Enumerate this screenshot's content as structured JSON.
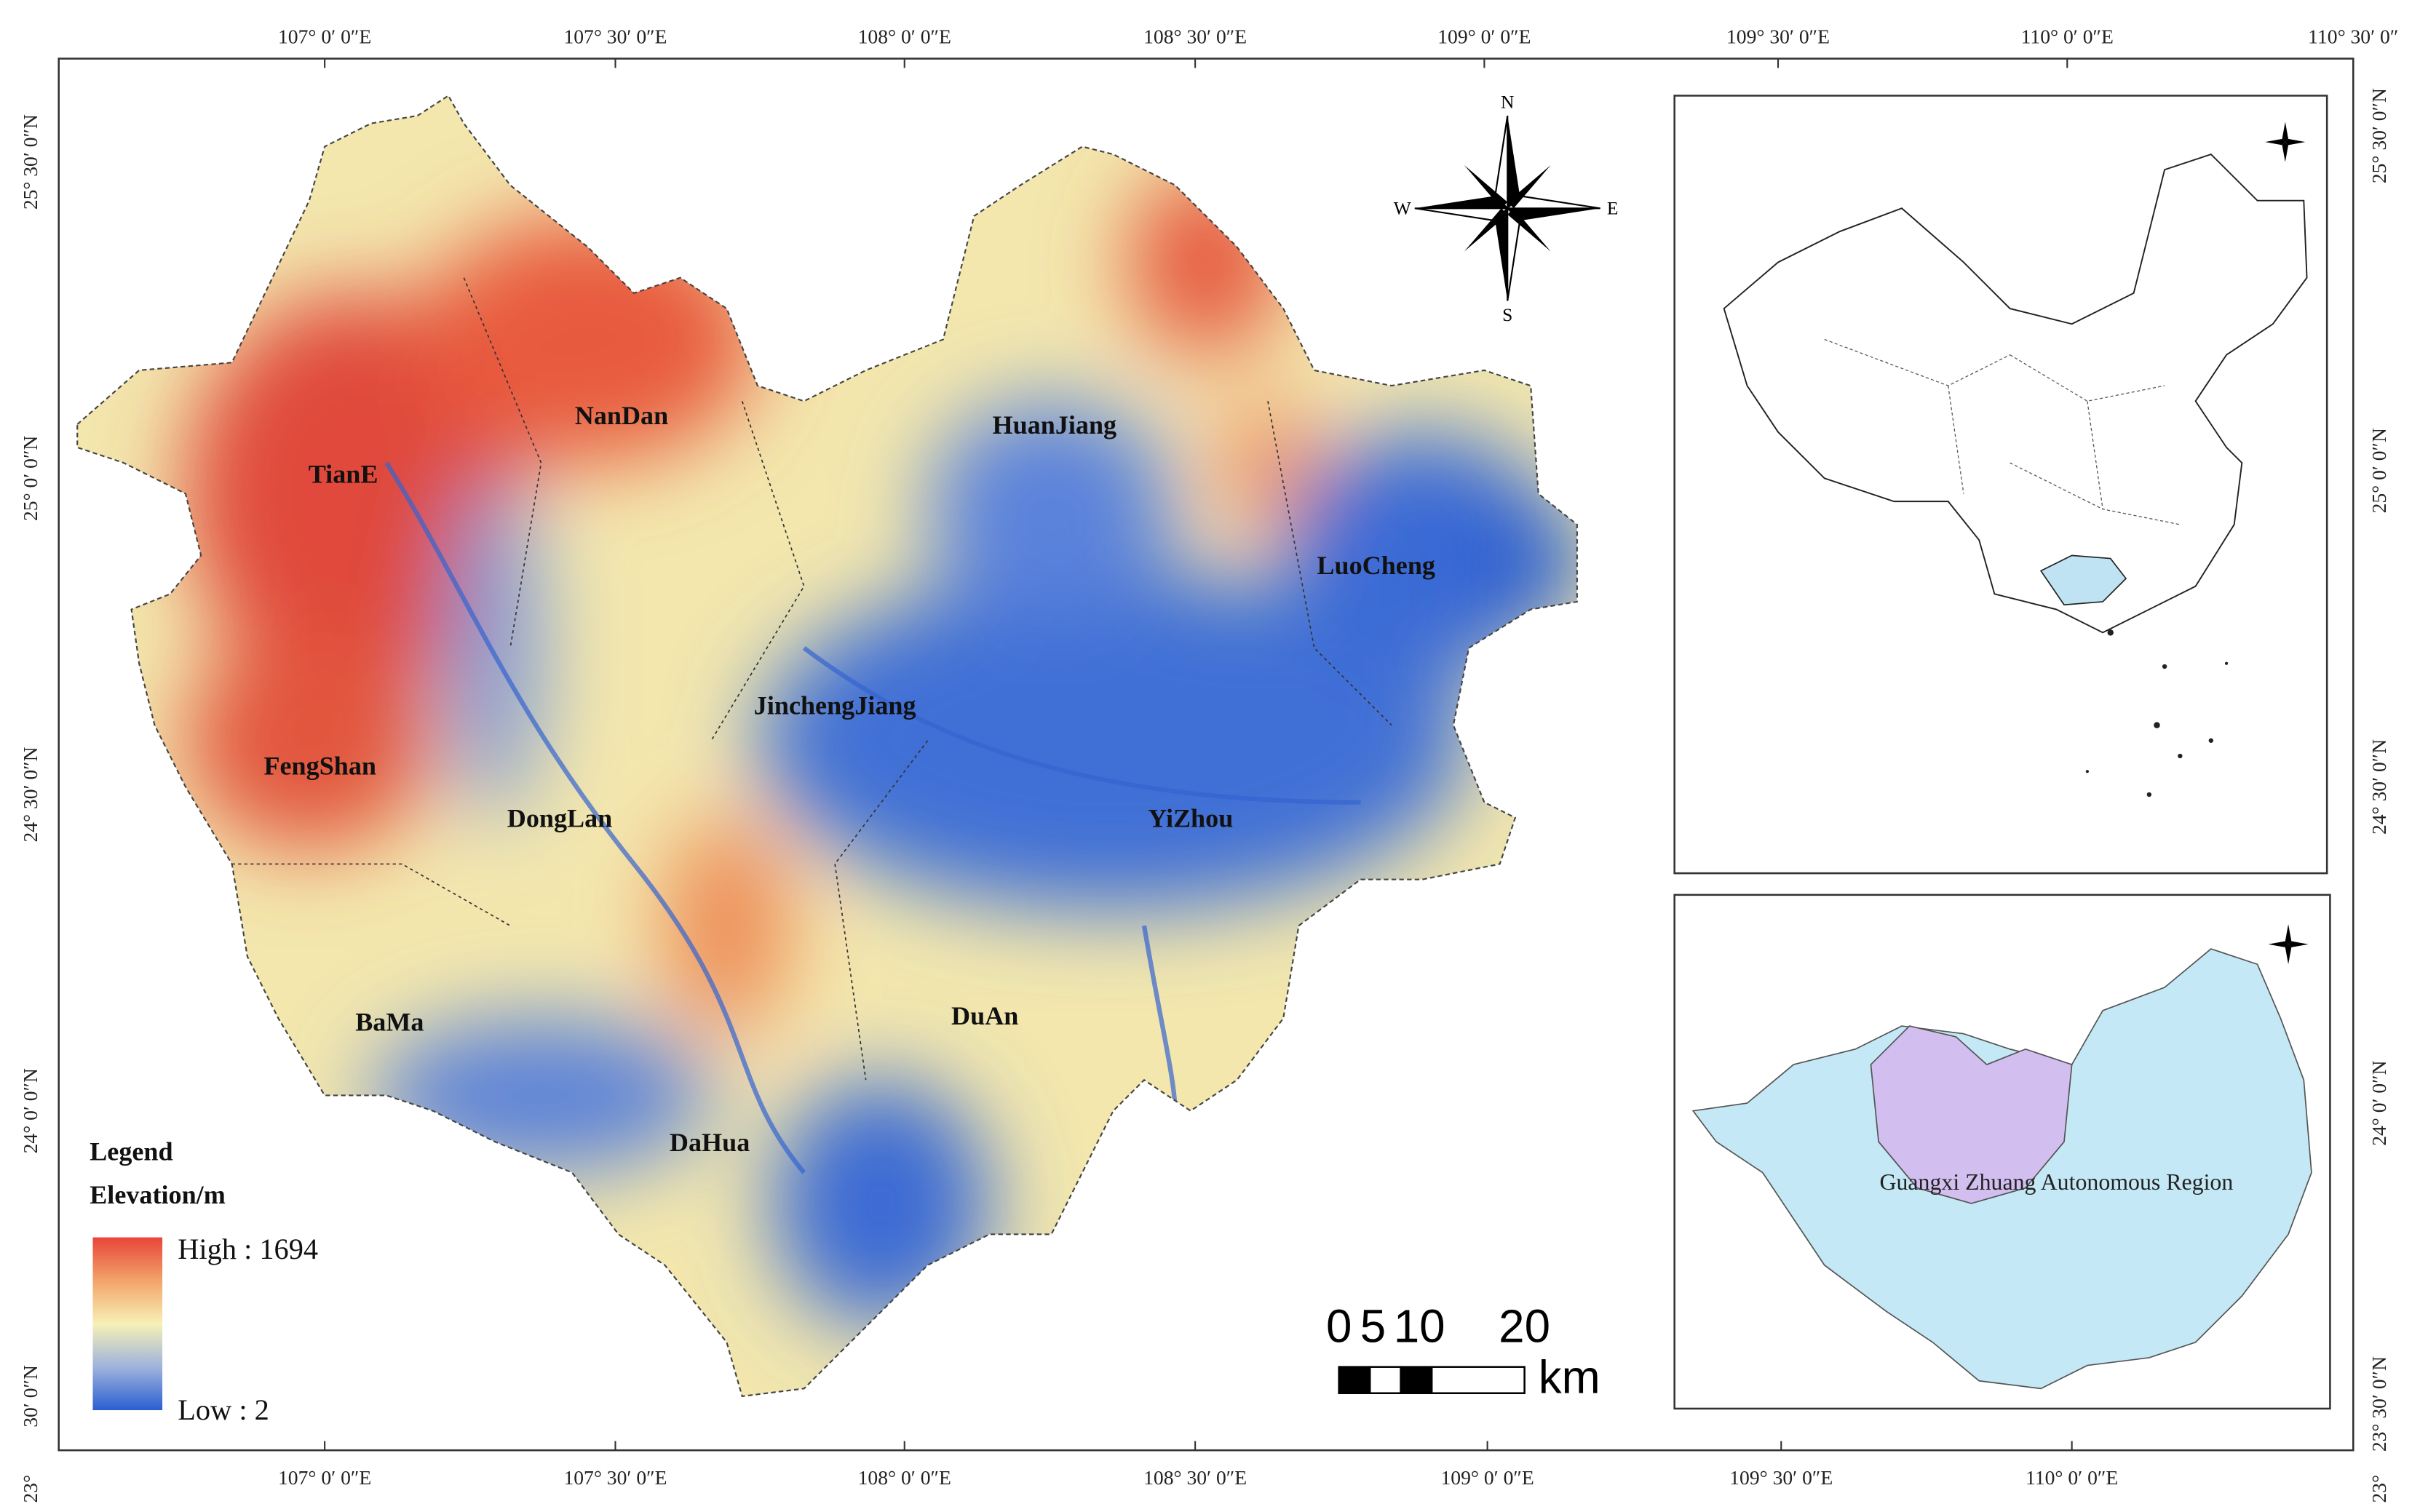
{
  "top_labels": [
    "107° 0′ 0″E",
    "107° 30′ 0″E",
    "108° 0′ 0″E",
    "108° 30′ 0″E",
    "109° 0′ 0″E",
    "109° 30′ 0″E",
    "110° 0′ 0″E",
    "110° 30′ 0″"
  ],
  "bottom_labels": [
    "107° 0′ 0″E",
    "107° 30′ 0″E",
    "108° 0′ 0″E",
    "108° 30′ 0″E",
    "109° 0′ 0″E",
    "109° 30′ 0″E",
    "110° 0′ 0″E"
  ],
  "left_labels": [
    "25° 30′ 0″N",
    "25° 0′ 0″N",
    "24° 30′ 0″N",
    "24° 0′ 0″N",
    "30′ 0″N"
  ],
  "right_labels": [
    "25° 30′ 0″N",
    "25° 0′ 0″N",
    "24° 30′ 0″N",
    "24° 0′ 0″N",
    "23° 30′ 0″N"
  ],
  "corner_labels": [
    "23°",
    "23°"
  ],
  "places": [
    "TianE",
    "NanDan",
    "HuanJiang",
    "LuoCheng",
    "JinchengJiang",
    "FengShan",
    "DongLan",
    "YiZhou",
    "BaMa",
    "DuAn",
    "DaHua"
  ],
  "legend": {
    "title": "Legend",
    "subtitle": "Elevation/m",
    "high": "High : 1694",
    "low": "Low : 2"
  },
  "scale_bar": {
    "ticks": [
      "0",
      "5",
      "10",
      "20"
    ],
    "unit": "km"
  },
  "compass": {
    "north": "N",
    "south": "S",
    "west": "W",
    "east": "E"
  },
  "inset": {
    "label": "Guangxi Zhuang Autonomous Region"
  }
}
